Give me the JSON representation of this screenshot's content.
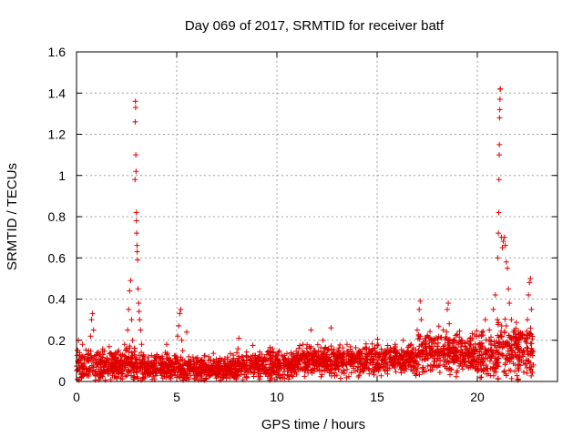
{
  "chart_data": {
    "type": "scatter",
    "title": "Day 069 of 2017, SRMTID for receiver batf",
    "xlabel": "GPS time / hours",
    "ylabel": "SRMTID / TECUs",
    "xlim": [
      0,
      24
    ],
    "ylim": [
      0,
      1.6
    ],
    "xticks": [
      0,
      5,
      10,
      15,
      20
    ],
    "xtick_labels": [
      "0",
      "5",
      "10",
      "15",
      "20"
    ],
    "yticks": [
      0,
      0.2,
      0.4,
      0.6,
      0.8,
      1,
      1.2,
      1.4,
      1.6
    ],
    "ytick_labels": [
      "0",
      "0.2",
      "0.4",
      "0.6",
      "0.8",
      "1",
      "1.2",
      "1.4",
      "1.6"
    ],
    "grid": true,
    "marker": "+",
    "color": "#e00000",
    "series": [
      {
        "name": "SRMTID",
        "points": [
          [
            0.05,
            0.01
          ],
          [
            0.1,
            0.2
          ],
          [
            0.15,
            0.14
          ],
          [
            0.2,
            0.1
          ],
          [
            0.3,
            0.18
          ],
          [
            0.35,
            0.08
          ],
          [
            0.4,
            0.12
          ],
          [
            0.5,
            0.06
          ],
          [
            0.6,
            0.15
          ],
          [
            0.7,
            0.22
          ],
          [
            0.75,
            0.3
          ],
          [
            0.8,
            0.33
          ],
          [
            0.85,
            0.25
          ],
          [
            0.9,
            0.12
          ],
          [
            1.0,
            0.08
          ],
          [
            1.1,
            0.05
          ],
          [
            1.2,
            0.07
          ],
          [
            1.3,
            0.04
          ],
          [
            1.4,
            0.1
          ],
          [
            1.5,
            0.06
          ],
          [
            1.6,
            0.05
          ],
          [
            1.7,
            0.08
          ],
          [
            1.8,
            0.12
          ],
          [
            1.9,
            0.07
          ],
          [
            2.0,
            0.09
          ],
          [
            2.1,
            0.15
          ],
          [
            2.2,
            0.1
          ],
          [
            2.3,
            0.13
          ],
          [
            2.4,
            0.18
          ],
          [
            2.5,
            0.16
          ],
          [
            2.55,
            0.25
          ],
          [
            2.6,
            0.35
          ],
          [
            2.65,
            0.44
          ],
          [
            2.7,
            0.49
          ],
          [
            2.75,
            0.3
          ],
          [
            2.8,
            0.2
          ],
          [
            2.85,
            0.05
          ],
          [
            2.9,
            0.02
          ],
          [
            2.92,
            0.98
          ],
          [
            2.93,
            1.26
          ],
          [
            2.94,
            1.36
          ],
          [
            2.95,
            1.33
          ],
          [
            2.96,
            1.1
          ],
          [
            2.97,
            1.02
          ],
          [
            2.98,
            0.82
          ],
          [
            2.99,
            0.78
          ],
          [
            3.0,
            0.72
          ],
          [
            3.02,
            0.66
          ],
          [
            3.03,
            0.63
          ],
          [
            3.05,
            0.59
          ],
          [
            3.07,
            0.45
          ],
          [
            3.1,
            0.38
          ],
          [
            3.12,
            0.34
          ],
          [
            3.15,
            0.3
          ],
          [
            3.2,
            0.25
          ],
          [
            3.25,
            0.18
          ],
          [
            3.3,
            0.12
          ],
          [
            3.4,
            0.09
          ],
          [
            3.5,
            0.06
          ],
          [
            3.6,
            0.1
          ],
          [
            3.7,
            0.05
          ],
          [
            3.8,
            0.08
          ],
          [
            3.9,
            0.12
          ],
          [
            4.0,
            0.06
          ],
          [
            4.1,
            0.09
          ],
          [
            4.2,
            0.04
          ],
          [
            4.3,
            0.11
          ],
          [
            4.4,
            0.07
          ],
          [
            4.5,
            0.18
          ],
          [
            4.6,
            0.1
          ],
          [
            4.7,
            0.05
          ],
          [
            4.8,
            0.08
          ],
          [
            4.9,
            0.06
          ],
          [
            5.0,
            0.12
          ],
          [
            5.05,
            0.22
          ],
          [
            5.1,
            0.27
          ],
          [
            5.15,
            0.33
          ],
          [
            5.2,
            0.35
          ],
          [
            5.25,
            0.2
          ],
          [
            5.3,
            0.15
          ],
          [
            5.4,
            0.1
          ],
          [
            5.5,
            0.24
          ],
          [
            5.6,
            0.12
          ],
          [
            5.7,
            0.08
          ],
          [
            5.8,
            0.06
          ],
          [
            6.0,
            0.09
          ],
          [
            6.2,
            0.05
          ],
          [
            6.4,
            0.08
          ],
          [
            6.6,
            0.12
          ],
          [
            6.8,
            0.06
          ],
          [
            7.0,
            0.09
          ],
          [
            7.2,
            0.05
          ],
          [
            7.4,
            0.11
          ],
          [
            7.6,
            0.07
          ],
          [
            7.8,
            0.1
          ],
          [
            8.0,
            0.14
          ],
          [
            8.1,
            0.21
          ],
          [
            8.3,
            0.12
          ],
          [
            8.5,
            0.08
          ],
          [
            8.7,
            0.1
          ],
          [
            8.9,
            0.06
          ],
          [
            9.1,
            0.12
          ],
          [
            9.3,
            0.08
          ],
          [
            9.5,
            0.13
          ],
          [
            9.7,
            0.06
          ],
          [
            9.9,
            0.1
          ],
          [
            10.1,
            0.07
          ],
          [
            10.3,
            0.12
          ],
          [
            10.5,
            0.09
          ],
          [
            10.7,
            0.14
          ],
          [
            10.9,
            0.06
          ],
          [
            11.1,
            0.1
          ],
          [
            11.3,
            0.18
          ],
          [
            11.5,
            0.12
          ],
          [
            11.7,
            0.25
          ],
          [
            11.9,
            0.15
          ],
          [
            12.1,
            0.1
          ],
          [
            12.3,
            0.2
          ],
          [
            12.5,
            0.13
          ],
          [
            12.7,
            0.26
          ],
          [
            12.9,
            0.1
          ],
          [
            13.1,
            0.15
          ],
          [
            13.3,
            0.08
          ],
          [
            13.5,
            0.18
          ],
          [
            13.7,
            0.12
          ],
          [
            13.9,
            0.09
          ],
          [
            14.1,
            0.15
          ],
          [
            14.3,
            0.11
          ],
          [
            14.5,
            0.08
          ],
          [
            14.7,
            0.13
          ],
          [
            14.9,
            0.07
          ],
          [
            15.1,
            0.12
          ],
          [
            15.3,
            0.1
          ],
          [
            15.5,
            0.15
          ],
          [
            15.7,
            0.09
          ],
          [
            15.9,
            0.18
          ],
          [
            16.1,
            0.12
          ],
          [
            16.3,
            0.2
          ],
          [
            16.5,
            0.14
          ],
          [
            16.7,
            0.18
          ],
          [
            16.9,
            0.12
          ],
          [
            17.0,
            0.25
          ],
          [
            17.1,
            0.35
          ],
          [
            17.15,
            0.39
          ],
          [
            17.2,
            0.3
          ],
          [
            17.3,
            0.15
          ],
          [
            17.5,
            0.22
          ],
          [
            17.7,
            0.16
          ],
          [
            17.9,
            0.2
          ],
          [
            18.1,
            0.14
          ],
          [
            18.3,
            0.25
          ],
          [
            18.5,
            0.35
          ],
          [
            18.55,
            0.38
          ],
          [
            18.6,
            0.28
          ],
          [
            18.8,
            0.15
          ],
          [
            19.0,
            0.1
          ],
          [
            19.2,
            0.2
          ],
          [
            19.4,
            0.08
          ],
          [
            19.6,
            0.15
          ],
          [
            19.8,
            0.12
          ],
          [
            20.0,
            0.05
          ],
          [
            20.2,
            0.22
          ],
          [
            20.3,
            0.1
          ],
          [
            20.4,
            0.3
          ],
          [
            20.5,
            0.15
          ],
          [
            20.6,
            0.25
          ],
          [
            20.7,
            0.12
          ],
          [
            20.8,
            0.35
          ],
          [
            20.9,
            0.42
          ],
          [
            21.0,
            0.3
          ],
          [
            21.02,
            0.6
          ],
          [
            21.05,
            0.72
          ],
          [
            21.07,
            0.82
          ],
          [
            21.08,
            0.98
          ],
          [
            21.09,
            1.1
          ],
          [
            21.1,
            1.15
          ],
          [
            21.11,
            1.28
          ],
          [
            21.12,
            1.32
          ],
          [
            21.13,
            1.37
          ],
          [
            21.14,
            1.42
          ],
          [
            21.15,
            1.42
          ],
          [
            21.2,
            0.7
          ],
          [
            21.25,
            0.65
          ],
          [
            21.3,
            0.68
          ],
          [
            21.35,
            0.7
          ],
          [
            21.4,
            0.66
          ],
          [
            21.45,
            0.58
          ],
          [
            21.5,
            0.55
          ],
          [
            21.55,
            0.45
          ],
          [
            21.6,
            0.38
          ],
          [
            21.7,
            0.3
          ],
          [
            21.8,
            0.22
          ],
          [
            21.9,
            0.18
          ],
          [
            22.0,
            0.12
          ],
          [
            22.1,
            0.2
          ],
          [
            22.2,
            0.1
          ],
          [
            22.3,
            0.15
          ],
          [
            22.4,
            0.08
          ],
          [
            22.5,
            0.3
          ],
          [
            22.55,
            0.42
          ],
          [
            22.6,
            0.48
          ],
          [
            22.65,
            0.5
          ],
          [
            22.7,
            0.35
          ],
          [
            22.75,
            0.15
          ],
          [
            22.8,
            0.08
          ]
        ],
        "band": {
          "segments": [
            [
              0.0,
              3.0,
              0.08,
              0.05
            ],
            [
              3.0,
              5.0,
              0.07,
              0.04
            ],
            [
              5.0,
              8.0,
              0.06,
              0.04
            ],
            [
              8.0,
              11.0,
              0.08,
              0.05
            ],
            [
              11.0,
              15.0,
              0.1,
              0.05
            ],
            [
              15.0,
              17.0,
              0.11,
              0.05
            ],
            [
              17.0,
              20.0,
              0.14,
              0.07
            ],
            [
              20.0,
              21.0,
              0.12,
              0.08
            ],
            [
              21.0,
              22.8,
              0.15,
              0.09
            ]
          ],
          "note": "dense cloud of '+' markers; each segment: [x_start, x_end, typical_value, spread]"
        }
      }
    ]
  }
}
